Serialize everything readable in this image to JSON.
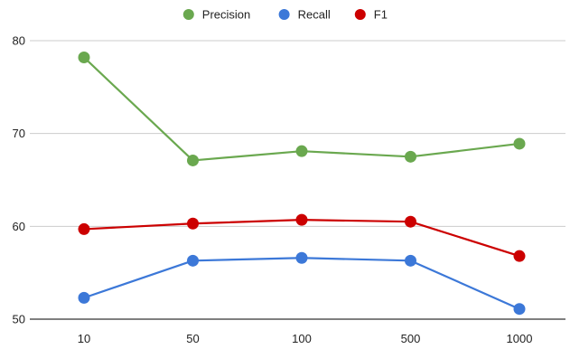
{
  "chart_data": {
    "type": "line",
    "categories": [
      "10",
      "50",
      "100",
      "500",
      "1000"
    ],
    "ylim": [
      50,
      80
    ],
    "yticks": [
      50,
      60,
      70,
      80
    ],
    "grid": true,
    "legend_position": "top-center",
    "series": [
      {
        "name": "Precision",
        "color": "#6aa84f",
        "values": [
          78.2,
          67.1,
          68.1,
          67.5,
          68.9
        ]
      },
      {
        "name": "Recall",
        "color": "#3c78d8",
        "values": [
          52.3,
          56.3,
          56.6,
          56.3,
          51.1
        ]
      },
      {
        "name": "F1",
        "color": "#cc0000",
        "values": [
          59.7,
          60.3,
          60.7,
          60.5,
          56.8
        ]
      }
    ]
  }
}
